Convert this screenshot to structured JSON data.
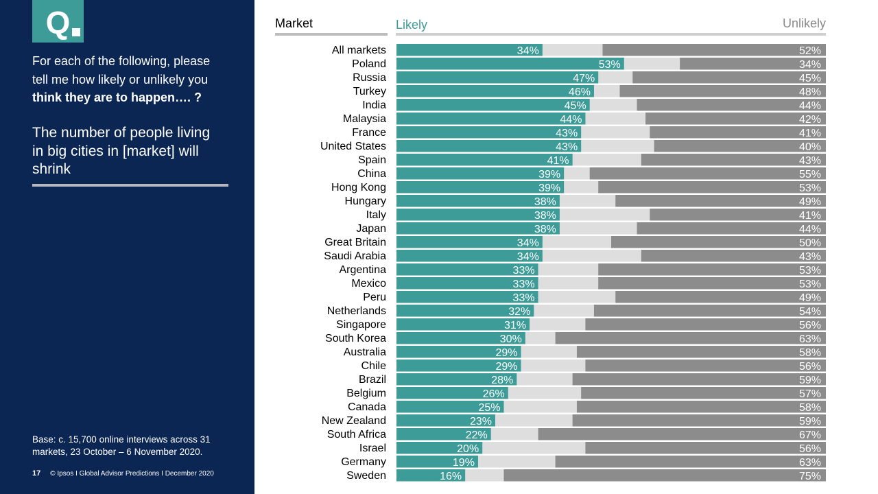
{
  "panel": {
    "q_label": "Q",
    "question_line1": "For each of the following, please",
    "question_line2": "tell me how likely or unlikely you",
    "question_bold": "think they are to happen…. ?",
    "statement_line1": "The number of people living",
    "statement_line2": "in big cities in [market] will",
    "statement_line3": "shrink",
    "base_line1": "Base: c. 15,700 online interviews across 31",
    "base_line2": "markets,  23 October – 6 November 2020.",
    "page_number": "17",
    "footer_text": "© Ipsos I Global Advisor Predictions I December 2020"
  },
  "colors": {
    "panel_bg": "#0b2653",
    "accent": "#3d9b98",
    "likely": "#3d9b98",
    "neutral": "#dedede",
    "unlikely": "#8c8c8c"
  },
  "chart_data": {
    "type": "bar",
    "orientation": "horizontal",
    "stacked": true,
    "category_header": "Market",
    "categories": [
      "All markets",
      "Poland",
      "Russia",
      "Turkey",
      "India",
      "Malaysia",
      "France",
      "United States",
      "Spain",
      "China",
      "Hong Kong",
      "Hungary",
      "Italy",
      "Japan",
      "Great Britain",
      "Saudi Arabia",
      "Argentina",
      "Mexico",
      "Peru",
      "Netherlands",
      "Singapore",
      "South Korea",
      "Australia",
      "Chile",
      "Brazil",
      "Belgium",
      "Canada",
      "New Zealand",
      "South Africa",
      "Israel",
      "Germany",
      "Sweden"
    ],
    "series": [
      {
        "name": "Likely",
        "values": [
          34,
          53,
          47,
          46,
          45,
          44,
          43,
          43,
          41,
          39,
          39,
          38,
          38,
          38,
          34,
          34,
          33,
          33,
          33,
          32,
          31,
          30,
          29,
          29,
          28,
          26,
          25,
          23,
          22,
          20,
          19,
          16
        ]
      },
      {
        "name": "Unlikely",
        "values": [
          52,
          34,
          45,
          48,
          44,
          42,
          41,
          40,
          43,
          55,
          53,
          49,
          41,
          44,
          50,
          43,
          53,
          53,
          49,
          54,
          56,
          63,
          58,
          56,
          59,
          57,
          58,
          59,
          67,
          56,
          63,
          75
        ]
      }
    ],
    "value_suffix": "%",
    "xlim": [
      0,
      100
    ]
  }
}
